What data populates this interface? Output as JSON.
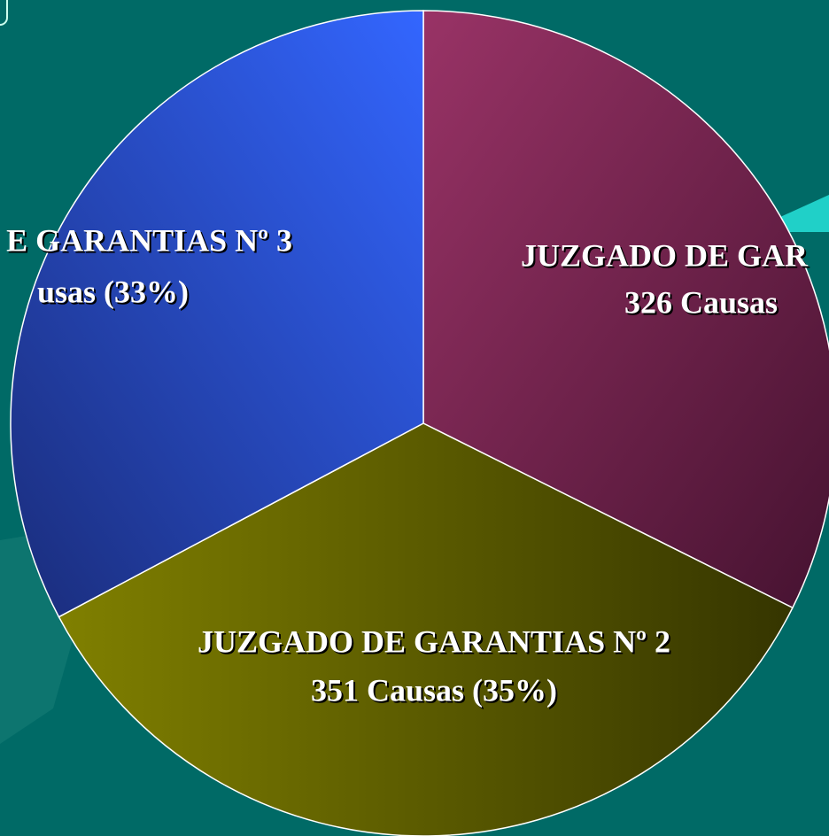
{
  "chart_data": {
    "type": "pie",
    "categories": [
      "JUZGADO DE GAR",
      "JUZGADO DE GARANTIAS Nº 2",
      "E GARANTIAS Nº 3"
    ],
    "values": [
      326,
      351,
      330
    ],
    "value_labels": [
      "326 Causas",
      "351 Causas (35%)",
      "usas (33%)"
    ],
    "colors": [
      "#993366",
      "#808000",
      "#3366ff"
    ]
  }
}
